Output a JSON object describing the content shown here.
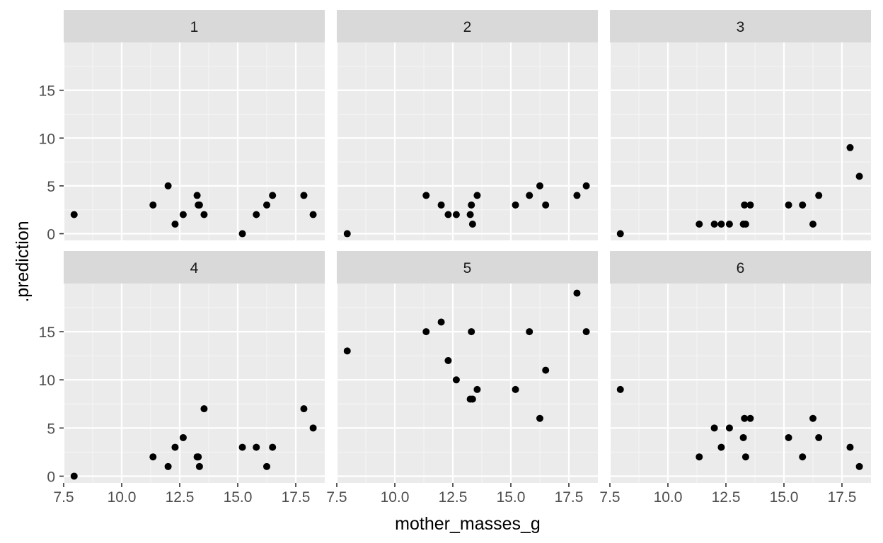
{
  "chart_data": {
    "type": "scatter",
    "xlabel": "mother_masses_g",
    "ylabel": ".prediction",
    "xlim": [
      7.5,
      18.75
    ],
    "x_ticks": [
      "7.5",
      "10.0",
      "12.5",
      "15.0",
      "17.5"
    ],
    "y_ticks": [
      "0",
      "5",
      "10",
      "15"
    ],
    "grid": true,
    "point_color": "#000000",
    "panel_bg": "#EBEBEB",
    "strip_bg": "#D9D9D9",
    "x": [
      7.95,
      11.35,
      12.0,
      12.3,
      12.65,
      13.25,
      13.3,
      13.35,
      13.55,
      15.2,
      15.8,
      16.25,
      16.5,
      17.85,
      18.25
    ],
    "facets": [
      {
        "label": "1",
        "ylim": [
          -0.7,
          20.0
        ],
        "y": [
          2,
          3,
          5,
          1,
          2,
          4,
          3,
          3,
          2,
          0,
          2,
          3,
          4,
          4,
          2
        ]
      },
      {
        "label": "2",
        "ylim": [
          -0.7,
          20.0
        ],
        "y": [
          0,
          4,
          3,
          2,
          2,
          2,
          3,
          1,
          4,
          3,
          4,
          5,
          3,
          4,
          5
        ]
      },
      {
        "label": "3",
        "ylim": [
          -0.7,
          20.0
        ],
        "y": [
          0,
          1,
          1,
          1,
          1,
          1,
          3,
          1,
          3,
          3,
          3,
          1,
          4,
          9,
          6
        ]
      },
      {
        "label": "4",
        "ylim": [
          -0.7,
          20.0
        ],
        "y": [
          0,
          2,
          1,
          3,
          4,
          2,
          2,
          1,
          7,
          3,
          3,
          1,
          3,
          7,
          5
        ]
      },
      {
        "label": "5",
        "ylim": [
          -0.7,
          20.0
        ],
        "y": [
          13,
          15,
          16,
          12,
          10,
          8,
          15,
          8,
          9,
          9,
          15,
          6,
          11,
          19,
          15
        ]
      },
      {
        "label": "6",
        "ylim": [
          -0.7,
          20.0
        ],
        "y": [
          9,
          2,
          5,
          3,
          5,
          4,
          6,
          2,
          6,
          4,
          2,
          6,
          4,
          3,
          1
        ]
      }
    ]
  }
}
